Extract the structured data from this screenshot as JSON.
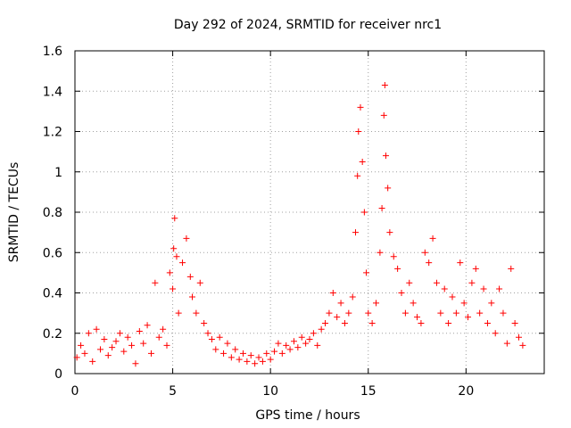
{
  "chart_data": {
    "type": "scatter",
    "title": "Day 292 of 2024, SRMTID for receiver nrc1",
    "xlabel": "GPS time / hours",
    "ylabel": "SRMTID / TECUs",
    "xlim": [
      0,
      24
    ],
    "ylim": [
      0,
      1.6
    ],
    "x_ticks": [
      0,
      5,
      10,
      15,
      20
    ],
    "y_ticks": [
      0,
      0.2,
      0.4,
      0.6,
      0.8,
      1,
      1.2,
      1.4,
      1.6
    ],
    "x_tick_labels": [
      "0",
      "5",
      "10",
      "15",
      "20"
    ],
    "y_tick_labels": [
      "0",
      "0.2",
      "0.4",
      "0.6",
      "0.8",
      "1",
      "1.2",
      "1.4",
      "1.6"
    ],
    "grid": true,
    "marker": "+",
    "marker_color": "#ff0000",
    "series": [
      {
        "name": "nrc1",
        "points": [
          [
            0.1,
            0.08
          ],
          [
            0.3,
            0.14
          ],
          [
            0.5,
            0.1
          ],
          [
            0.7,
            0.2
          ],
          [
            0.9,
            0.06
          ],
          [
            1.1,
            0.22
          ],
          [
            1.3,
            0.12
          ],
          [
            1.5,
            0.17
          ],
          [
            1.7,
            0.09
          ],
          [
            1.9,
            0.13
          ],
          [
            2.1,
            0.16
          ],
          [
            2.3,
            0.2
          ],
          [
            2.5,
            0.11
          ],
          [
            2.7,
            0.18
          ],
          [
            2.9,
            0.14
          ],
          [
            3.1,
            0.05
          ],
          [
            3.3,
            0.21
          ],
          [
            3.5,
            0.15
          ],
          [
            3.7,
            0.24
          ],
          [
            3.9,
            0.1
          ],
          [
            4.1,
            0.45
          ],
          [
            4.3,
            0.18
          ],
          [
            4.5,
            0.22
          ],
          [
            4.7,
            0.14
          ],
          [
            4.85,
            0.5
          ],
          [
            5.0,
            0.42
          ],
          [
            5.05,
            0.62
          ],
          [
            5.1,
            0.77
          ],
          [
            5.2,
            0.58
          ],
          [
            5.3,
            0.3
          ],
          [
            5.5,
            0.55
          ],
          [
            5.7,
            0.67
          ],
          [
            5.9,
            0.48
          ],
          [
            6.0,
            0.38
          ],
          [
            6.2,
            0.3
          ],
          [
            6.4,
            0.45
          ],
          [
            6.6,
            0.25
          ],
          [
            6.8,
            0.2
          ],
          [
            7.0,
            0.17
          ],
          [
            7.2,
            0.12
          ],
          [
            7.4,
            0.18
          ],
          [
            7.6,
            0.1
          ],
          [
            7.8,
            0.15
          ],
          [
            8.0,
            0.08
          ],
          [
            8.2,
            0.12
          ],
          [
            8.4,
            0.07
          ],
          [
            8.6,
            0.1
          ],
          [
            8.8,
            0.06
          ],
          [
            9.0,
            0.09
          ],
          [
            9.2,
            0.05
          ],
          [
            9.4,
            0.08
          ],
          [
            9.6,
            0.06
          ],
          [
            9.8,
            0.1
          ],
          [
            10.0,
            0.07
          ],
          [
            10.2,
            0.11
          ],
          [
            10.4,
            0.15
          ],
          [
            10.6,
            0.1
          ],
          [
            10.8,
            0.14
          ],
          [
            11.0,
            0.12
          ],
          [
            11.2,
            0.16
          ],
          [
            11.4,
            0.13
          ],
          [
            11.6,
            0.18
          ],
          [
            11.8,
            0.15
          ],
          [
            12.0,
            0.17
          ],
          [
            12.2,
            0.2
          ],
          [
            12.4,
            0.14
          ],
          [
            12.6,
            0.22
          ],
          [
            12.8,
            0.25
          ],
          [
            13.0,
            0.3
          ],
          [
            13.2,
            0.4
          ],
          [
            13.4,
            0.28
          ],
          [
            13.6,
            0.35
          ],
          [
            13.8,
            0.25
          ],
          [
            14.0,
            0.3
          ],
          [
            14.2,
            0.38
          ],
          [
            14.35,
            0.7
          ],
          [
            14.45,
            0.98
          ],
          [
            14.5,
            1.2
          ],
          [
            14.6,
            1.32
          ],
          [
            14.7,
            1.05
          ],
          [
            14.8,
            0.8
          ],
          [
            14.9,
            0.5
          ],
          [
            15.0,
            0.3
          ],
          [
            15.2,
            0.25
          ],
          [
            15.4,
            0.35
          ],
          [
            15.6,
            0.6
          ],
          [
            15.7,
            0.82
          ],
          [
            15.8,
            1.28
          ],
          [
            15.85,
            1.43
          ],
          [
            15.9,
            1.08
          ],
          [
            16.0,
            0.92
          ],
          [
            16.1,
            0.7
          ],
          [
            16.3,
            0.58
          ],
          [
            16.5,
            0.52
          ],
          [
            16.7,
            0.4
          ],
          [
            16.9,
            0.3
          ],
          [
            17.1,
            0.45
          ],
          [
            17.3,
            0.35
          ],
          [
            17.5,
            0.28
          ],
          [
            17.7,
            0.25
          ],
          [
            17.9,
            0.6
          ],
          [
            18.1,
            0.55
          ],
          [
            18.3,
            0.67
          ],
          [
            18.5,
            0.45
          ],
          [
            18.7,
            0.3
          ],
          [
            18.9,
            0.42
          ],
          [
            19.1,
            0.25
          ],
          [
            19.3,
            0.38
          ],
          [
            19.5,
            0.3
          ],
          [
            19.7,
            0.55
          ],
          [
            19.9,
            0.35
          ],
          [
            20.1,
            0.28
          ],
          [
            20.3,
            0.45
          ],
          [
            20.5,
            0.52
          ],
          [
            20.7,
            0.3
          ],
          [
            20.9,
            0.42
          ],
          [
            21.1,
            0.25
          ],
          [
            21.3,
            0.35
          ],
          [
            21.5,
            0.2
          ],
          [
            21.7,
            0.42
          ],
          [
            21.9,
            0.3
          ],
          [
            22.1,
            0.15
          ],
          [
            22.3,
            0.52
          ],
          [
            22.5,
            0.25
          ],
          [
            22.7,
            0.18
          ],
          [
            22.9,
            0.14
          ]
        ]
      }
    ]
  }
}
